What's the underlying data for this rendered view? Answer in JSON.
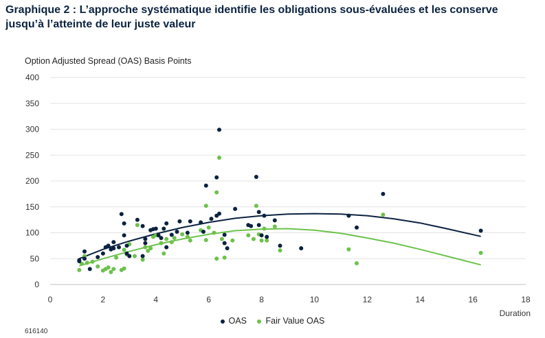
{
  "chart_data": {
    "type": "scatter",
    "title": "Graphique 2 : L’approche systématique identifie les obligations sous-évaluées et les conserve jusqu’à l’atteinte de leur juste valeur",
    "ylabel": "Option Adjusted Spread (OAS) Basis Points",
    "xlabel": "Duration",
    "xlim": [
      0,
      18
    ],
    "ylim": [
      0,
      400
    ],
    "xticks": [
      0,
      2,
      4,
      6,
      8,
      10,
      12,
      14,
      16,
      18
    ],
    "yticks": [
      0,
      50,
      100,
      150,
      200,
      250,
      300,
      350,
      400
    ],
    "grid": "horizontal",
    "legend_position": "bottom",
    "series": [
      {
        "name": "OAS",
        "color": "#0b2240",
        "points": [
          [
            1.1,
            47
          ],
          [
            1.1,
            45
          ],
          [
            1.3,
            64
          ],
          [
            1.3,
            50
          ],
          [
            1.5,
            30
          ],
          [
            1.8,
            53
          ],
          [
            2.0,
            60
          ],
          [
            2.1,
            72
          ],
          [
            2.2,
            75
          ],
          [
            2.3,
            68
          ],
          [
            2.4,
            82
          ],
          [
            2.4,
            70
          ],
          [
            2.6,
            72
          ],
          [
            2.7,
            136
          ],
          [
            2.8,
            118
          ],
          [
            2.8,
            95
          ],
          [
            2.9,
            75
          ],
          [
            2.9,
            60
          ],
          [
            3.0,
            55
          ],
          [
            3.3,
            125
          ],
          [
            3.5,
            113
          ],
          [
            3.5,
            55
          ],
          [
            3.6,
            88
          ],
          [
            3.6,
            80
          ],
          [
            3.8,
            105
          ],
          [
            3.9,
            107
          ],
          [
            4.0,
            108
          ],
          [
            4.1,
            95
          ],
          [
            4.2,
            90
          ],
          [
            4.3,
            108
          ],
          [
            4.4,
            118
          ],
          [
            4.4,
            72
          ],
          [
            4.6,
            96
          ],
          [
            4.8,
            102
          ],
          [
            4.9,
            122
          ],
          [
            5.2,
            100
          ],
          [
            5.3,
            122
          ],
          [
            5.7,
            120
          ],
          [
            5.8,
            102
          ],
          [
            5.9,
            191
          ],
          [
            6.1,
            127
          ],
          [
            6.3,
            207
          ],
          [
            6.3,
            133
          ],
          [
            6.4,
            137
          ],
          [
            6.4,
            299
          ],
          [
            6.6,
            96
          ],
          [
            6.6,
            80
          ],
          [
            6.7,
            70
          ],
          [
            7.0,
            146
          ],
          [
            7.5,
            115
          ],
          [
            7.6,
            113
          ],
          [
            7.8,
            208
          ],
          [
            7.9,
            115
          ],
          [
            7.9,
            140
          ],
          [
            8.0,
            95
          ],
          [
            8.1,
            133
          ],
          [
            8.2,
            92
          ],
          [
            8.5,
            124
          ],
          [
            8.7,
            75
          ],
          [
            9.5,
            70
          ],
          [
            11.3,
            133
          ],
          [
            11.6,
            110
          ],
          [
            12.6,
            175
          ],
          [
            16.3,
            104
          ]
        ]
      },
      {
        "name": "Fair  Value OAS",
        "color": "#6cc24a",
        "points": [
          [
            1.1,
            28
          ],
          [
            1.2,
            40
          ],
          [
            1.3,
            55
          ],
          [
            1.4,
            42
          ],
          [
            1.6,
            44
          ],
          [
            1.8,
            35
          ],
          [
            2.0,
            27
          ],
          [
            2.1,
            30
          ],
          [
            2.2,
            33
          ],
          [
            2.3,
            24
          ],
          [
            2.4,
            30
          ],
          [
            2.5,
            52
          ],
          [
            2.7,
            28
          ],
          [
            2.8,
            31
          ],
          [
            2.8,
            67
          ],
          [
            2.9,
            58
          ],
          [
            3.0,
            78
          ],
          [
            3.2,
            55
          ],
          [
            3.3,
            115
          ],
          [
            3.5,
            48
          ],
          [
            3.6,
            72
          ],
          [
            3.7,
            65
          ],
          [
            3.8,
            70
          ],
          [
            3.9,
            92
          ],
          [
            4.0,
            95
          ],
          [
            4.2,
            80
          ],
          [
            4.3,
            60
          ],
          [
            4.4,
            88
          ],
          [
            4.6,
            82
          ],
          [
            4.7,
            90
          ],
          [
            5.0,
            97
          ],
          [
            5.2,
            92
          ],
          [
            5.3,
            85
          ],
          [
            5.7,
            105
          ],
          [
            5.9,
            86
          ],
          [
            5.9,
            152
          ],
          [
            6.0,
            110
          ],
          [
            6.2,
            100
          ],
          [
            6.3,
            50
          ],
          [
            6.3,
            178
          ],
          [
            6.4,
            245
          ],
          [
            6.5,
            88
          ],
          [
            6.6,
            52
          ],
          [
            6.9,
            85
          ],
          [
            7.5,
            95
          ],
          [
            7.7,
            88
          ],
          [
            7.8,
            152
          ],
          [
            7.9,
            97
          ],
          [
            8.0,
            85
          ],
          [
            8.1,
            108
          ],
          [
            8.2,
            85
          ],
          [
            8.5,
            112
          ],
          [
            8.7,
            66
          ],
          [
            9.5,
            70
          ],
          [
            11.3,
            68
          ],
          [
            11.6,
            41
          ],
          [
            12.6,
            135
          ],
          [
            16.3,
            61
          ]
        ]
      }
    ],
    "trendlines": [
      {
        "series": "OAS",
        "x": [
          1.1,
          2,
          3,
          4,
          5,
          6,
          7,
          8,
          9,
          10,
          11,
          12,
          13,
          14,
          15,
          16.3
        ],
        "y": [
          50,
          68,
          84,
          98,
          110,
          120,
          128,
          133,
          136,
          137,
          136,
          133,
          127,
          119,
          108,
          93
        ]
      },
      {
        "series": "Fair  Value OAS",
        "x": [
          1.1,
          2,
          3,
          4,
          5,
          6,
          7,
          8,
          9,
          10,
          11,
          12,
          13,
          14,
          15,
          16.3
        ],
        "y": [
          36,
          50,
          64,
          77,
          88,
          97,
          104,
          107,
          108,
          105,
          99,
          90,
          80,
          68,
          55,
          38
        ]
      }
    ]
  },
  "footer": {
    "code": "616140"
  }
}
